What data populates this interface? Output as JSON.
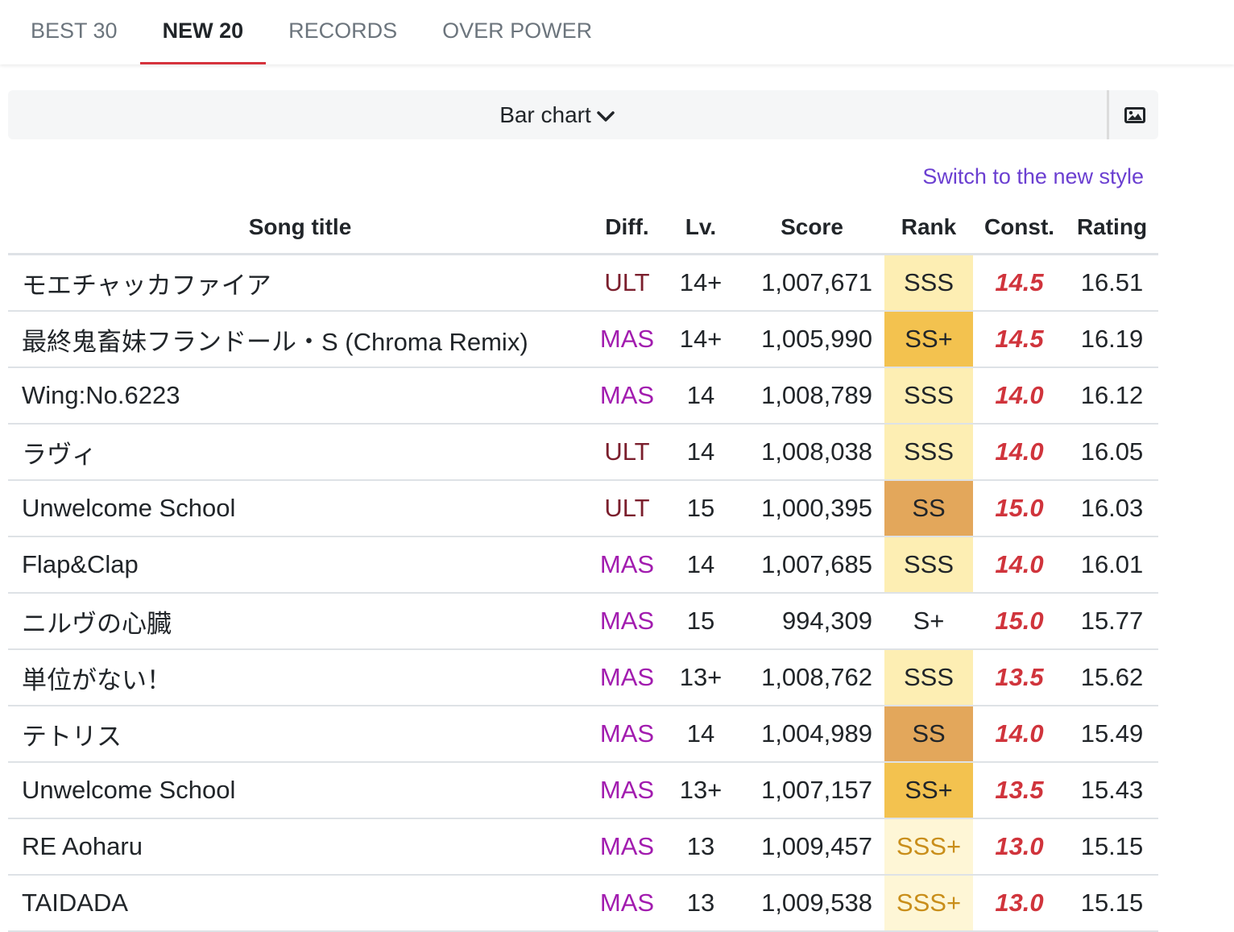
{
  "tabs": [
    "BEST 30",
    "NEW 20",
    "RECORDS",
    "OVER POWER"
  ],
  "dropdown": {
    "label": "Bar chart"
  },
  "link": "Switch to the new style",
  "table": {
    "headers": [
      "Song title",
      "Diff.",
      "Lv.",
      "Score",
      "Rank",
      "Const.",
      "Rating"
    ],
    "rows": [
      [
        "モエチャッカファイア",
        "ULT",
        "14+",
        "1,007,671",
        "SSS",
        "14.5",
        "16.51"
      ],
      [
        "最終鬼畜妹フランドール・S (Chroma Remix)",
        "MAS",
        "14+",
        "1,005,990",
        "SS+",
        "14.5",
        "16.19"
      ],
      [
        "Wing:No.6223",
        "MAS",
        "14",
        "1,008,789",
        "SSS",
        "14.0",
        "16.12"
      ],
      [
        "ラヴィ",
        "ULT",
        "14",
        "1,008,038",
        "SSS",
        "14.0",
        "16.05"
      ],
      [
        "Unwelcome School",
        "ULT",
        "15",
        "1,000,395",
        "SS",
        "15.0",
        "16.03"
      ],
      [
        "Flap&Clap",
        "MAS",
        "14",
        "1,007,685",
        "SSS",
        "14.0",
        "16.01"
      ],
      [
        "ニルヴの心臓",
        "MAS",
        "15",
        "994,309",
        "S+",
        "15.0",
        "15.77"
      ],
      [
        "単位がない！",
        "MAS",
        "13+",
        "1,008,762",
        "SSS",
        "13.5",
        "15.62"
      ],
      [
        "テトリス",
        "MAS",
        "14",
        "1,004,989",
        "SS",
        "14.0",
        "15.49"
      ],
      [
        "Unwelcome School",
        "MAS",
        "13+",
        "1,007,157",
        "SS+",
        "13.5",
        "15.43"
      ],
      [
        "RE Aoharu",
        "MAS",
        "13",
        "1,009,457",
        "SSS+",
        "13.0",
        "15.15"
      ],
      [
        "TAIDADA",
        "MAS",
        "13",
        "1,009,538",
        "SSS+",
        "13.0",
        "15.15"
      ]
    ]
  }
}
